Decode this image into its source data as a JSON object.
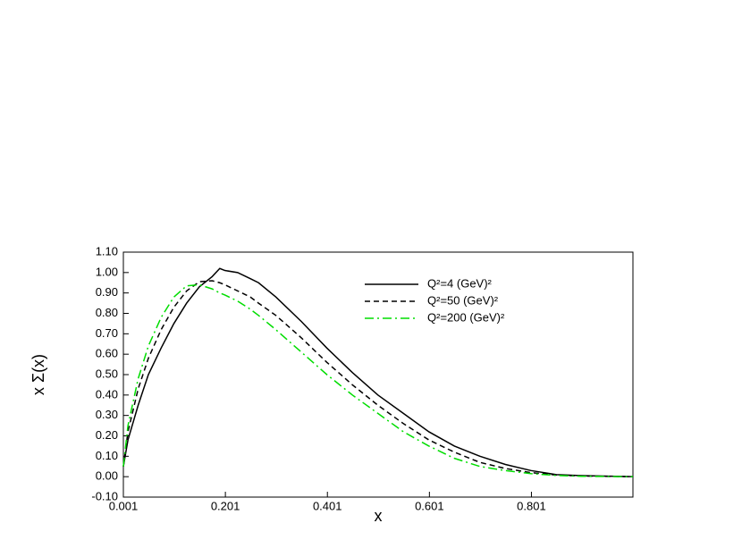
{
  "chart_data": {
    "type": "line",
    "xlabel": "x",
    "ylabel": "x Σ(x)",
    "x": [
      0.001,
      0.01,
      0.03,
      0.05,
      0.075,
      0.1,
      0.125,
      0.15,
      0.175,
      0.19,
      0.2,
      0.225,
      0.25,
      0.266,
      0.3,
      0.35,
      0.4,
      0.45,
      0.5,
      0.55,
      0.6,
      0.65,
      0.7,
      0.75,
      0.8,
      0.85,
      0.9,
      1.0
    ],
    "series": [
      {
        "name": "Q²=4 (GeV)²",
        "color": "#000000",
        "dash": "solid",
        "values": [
          0.05,
          0.18,
          0.35,
          0.5,
          0.63,
          0.75,
          0.85,
          0.93,
          0.98,
          1.02,
          1.01,
          1.0,
          0.97,
          0.95,
          0.88,
          0.76,
          0.63,
          0.51,
          0.4,
          0.31,
          0.22,
          0.15,
          0.1,
          0.06,
          0.03,
          0.01,
          0.005,
          0.0
        ]
      },
      {
        "name": "Q²=50 (GeV)²",
        "color": "#000000",
        "dash": "dashed",
        "values": [
          0.05,
          0.22,
          0.43,
          0.58,
          0.72,
          0.83,
          0.91,
          0.955,
          0.96,
          0.95,
          0.94,
          0.91,
          0.88,
          0.85,
          0.79,
          0.68,
          0.56,
          0.45,
          0.35,
          0.26,
          0.18,
          0.12,
          0.07,
          0.04,
          0.02,
          0.008,
          0.003,
          0.0
        ]
      },
      {
        "name": "Q²=200 (GeV)²",
        "color": "#00dd00",
        "dash": "dashdot",
        "values": [
          0.05,
          0.25,
          0.48,
          0.64,
          0.78,
          0.88,
          0.935,
          0.94,
          0.92,
          0.9,
          0.89,
          0.86,
          0.82,
          0.79,
          0.72,
          0.61,
          0.5,
          0.4,
          0.31,
          0.22,
          0.15,
          0.09,
          0.05,
          0.03,
          0.015,
          0.006,
          0.002,
          0.0
        ]
      }
    ],
    "xlim": [
      0.001,
      1.0
    ],
    "ylim": [
      -0.1,
      1.1
    ],
    "xticks": [
      0.001,
      0.201,
      0.401,
      0.601,
      0.801
    ],
    "yticks": [
      {
        "value": -0.1,
        "label": "-0.10"
      },
      {
        "value": 0,
        "label": "0.00"
      },
      {
        "value": 0.1,
        "label": "0.10"
      },
      {
        "value": 0.2,
        "label": "0.20"
      },
      {
        "value": 0.3,
        "label": "0.30"
      },
      {
        "value": 0.4,
        "label": "0.40"
      },
      {
        "value": 0.5,
        "label": "0.50"
      },
      {
        "value": 0.6,
        "label": "0.60"
      },
      {
        "value": 0.7,
        "label": "0.70"
      },
      {
        "value": 0.8,
        "label": "0.80"
      },
      {
        "value": 0.9,
        "label": "0.90"
      },
      {
        "value": 1.0,
        "label": "1.00"
      },
      {
        "value": 1.1,
        "label": "1.10"
      }
    ],
    "grid": false,
    "legend": "upper right"
  }
}
